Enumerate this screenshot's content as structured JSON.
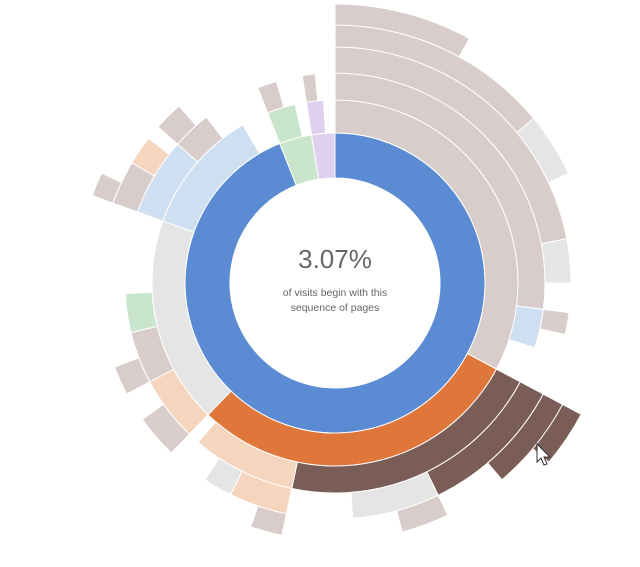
{
  "chart_data": {
    "type": "sunburst",
    "center_text": "3.07%",
    "center_caption": [
      "of visits begin with this",
      "sequence of pages"
    ],
    "children": [
      {
        "value": 94,
        "color": "#5b8bd3",
        "children": [
          {
            "value": 32.8,
            "color": "#d8cdca",
            "children": [
              {
                "value": 27,
                "color": "#d8cdca",
                "children": [
                  {
                    "value": 22,
                    "color": "#d8cdca",
                    "children": [
                      {
                        "value": 14,
                        "color": "#d8cdca",
                        "children": [
                          {
                            "value": 8,
                            "color": "#d8cdca",
                            "children": [
                              {
                                "value": 4,
                                "color": "#d8cdca"
                              }
                            ]
                          }
                        ]
                      },
                      {
                        "value": 4,
                        "color": "#e5e5e5"
                      }
                    ]
                  },
                  {
                    "value": 3,
                    "color": "#e5e5e5"
                  }
                ]
              },
              {
                "value": 3,
                "color": "#cfdff2",
                "children": [
                  {
                    "value": 1.5,
                    "color": "#d8cdca"
                  }
                ]
              }
            ]
          },
          {
            "value": 29.4,
            "color": "#e0773a",
            "children": [
              {
                "value": 20.5,
                "color": "#7b5d57",
                "children": [
                  {
                    "value": 10,
                    "color": "#7b5d57",
                    "children": [
                      {
                        "value": 6,
                        "color": "#7b5d57",
                        "children": [
                          {
                            "value": 3.3,
                            "color": "#7b5d57"
                          }
                        ]
                      }
                    ]
                  },
                  {
                    "value": 6,
                    "color": "#e5e5e5",
                    "children": [
                      {
                        "value": 3,
                        "color": "#d8cdca"
                      }
                    ]
                  }
                ]
              },
              {
                "value": 8,
                "color": "#f6d5bf",
                "children": [
                  {
                    "value": 4,
                    "color": "#f6d5bf",
                    "children": [
                      {
                        "value": 2,
                        "color": "#d8cdca"
                      }
                    ]
                  },
                  {
                    "value": 2,
                    "color": "#e5e5e5"
                  }
                ]
              }
            ]
          },
          {
            "value": 18.3,
            "color": "#e5e5e5",
            "children": [
              {
                "value": 5,
                "color": "#f6d5bf",
                "children": [
                  {
                    "value": 3,
                    "color": "#d8cdca"
                  }
                ]
              },
              {
                "value": 4,
                "color": "#d8cdca",
                "children": [
                  {
                    "value": 2,
                    "color": "#d8cdca"
                  }
                ]
              },
              {
                "value": 3,
                "color": "#c9e6cc"
              }
            ]
          },
          {
            "value": 11.1,
            "color": "#cfdff2",
            "children": [
              {
                "value": 6,
                "color": "#cfdff2",
                "children": [
                  {
                    "value": 3,
                    "color": "#d8cdca",
                    "children": [
                      {
                        "value": 1.5,
                        "color": "#d8cdca"
                      }
                    ]
                  },
                  {
                    "value": 2,
                    "color": "#f6d5bf"
                  }
                ]
              },
              {
                "value": 3,
                "color": "#d8cdca",
                "children": [
                  {
                    "value": 2,
                    "color": "#d8cdca"
                  }
                ]
              }
            ]
          }
        ]
      },
      {
        "value": 3.5,
        "color": "#c9e6cc",
        "children": [
          {
            "value": 2.5,
            "color": "#c9e6cc",
            "children": [
              {
                "value": 1.5,
                "color": "#d8cdca"
              }
            ]
          }
        ]
      },
      {
        "value": 2.5,
        "color": "#e0d0ef",
        "children": [
          {
            "value": 1.5,
            "color": "#e0d0ef",
            "children": [
              {
                "value": 1,
                "color": "#d8cdca"
              }
            ]
          }
        ]
      }
    ]
  }
}
